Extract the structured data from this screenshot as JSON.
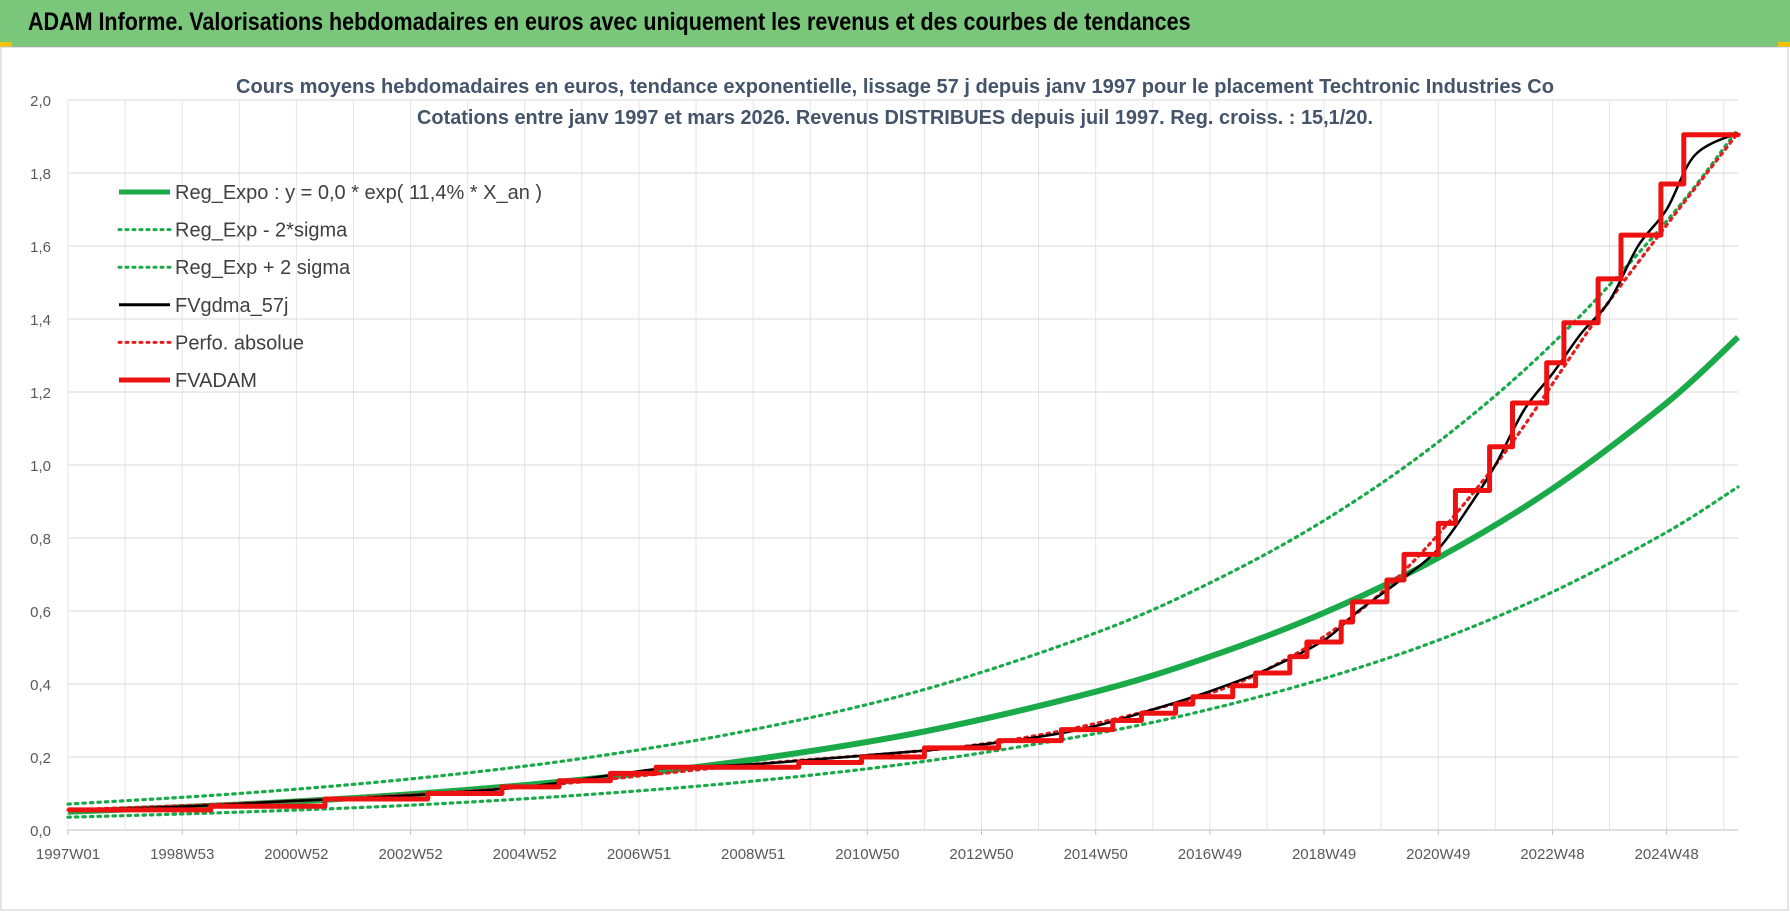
{
  "banner": {
    "title": "ADAM Informe. Valorisations hebdomadaires en euros avec uniquement les revenus et des courbes de tendances"
  },
  "chart_data": {
    "type": "line",
    "title": "Cours moyens hebdomadaires en euros, tendance exponentielle, lissage 57 j depuis janv 1997 pour le placement Techtronic Industries Co",
    "subtitle": "Cotations entre janv 1997 et mars 2026. Revenus DISTRIBUES depuis juil 1997. Reg. croiss. : 15,1/20.",
    "xlabel": "",
    "ylabel": "",
    "x_ticks": [
      "1997W01",
      "1998W53",
      "2000W52",
      "2002W52",
      "2004W52",
      "2006W51",
      "2008W51",
      "2010W50",
      "2012W50",
      "2014W50",
      "2016W49",
      "2018W49",
      "2020W49",
      "2022W48",
      "2024W48"
    ],
    "x_range": [
      "1997W01",
      "2026W13"
    ],
    "y_ticks": [
      "0,0",
      "0,2",
      "0,4",
      "0,6",
      "0,8",
      "1,0",
      "1,2",
      "1,4",
      "1,6",
      "1,8",
      "2,0"
    ],
    "ylim": [
      0,
      2.0
    ],
    "grid": true,
    "legend_position": "top-left",
    "series": [
      {
        "name": "Reg_Expo : y = 0,0 * exp( 11,4% *  X_an )",
        "color": "#1aaa4a",
        "style": "solid-thick",
        "points": [
          [
            1997.0,
            0.05
          ],
          [
            2000.0,
            0.07
          ],
          [
            2003.0,
            0.098
          ],
          [
            2006.0,
            0.138
          ],
          [
            2009.0,
            0.193
          ],
          [
            2012.0,
            0.27
          ],
          [
            2015.0,
            0.379
          ],
          [
            2017.0,
            0.475
          ],
          [
            2019.0,
            0.595
          ],
          [
            2021.0,
            0.746
          ],
          [
            2023.0,
            0.935
          ],
          [
            2025.0,
            1.17
          ],
          [
            2026.25,
            1.35
          ]
        ]
      },
      {
        "name": "Reg_Exp - 2*sigma",
        "color": "#1aaa4a",
        "style": "dotted",
        "points": [
          [
            1997.0,
            0.035
          ],
          [
            2000.0,
            0.049
          ],
          [
            2003.0,
            0.068
          ],
          [
            2006.0,
            0.096
          ],
          [
            2009.0,
            0.134
          ],
          [
            2012.0,
            0.188
          ],
          [
            2015.0,
            0.264
          ],
          [
            2017.0,
            0.331
          ],
          [
            2019.0,
            0.415
          ],
          [
            2021.0,
            0.52
          ],
          [
            2023.0,
            0.652
          ],
          [
            2025.0,
            0.816
          ],
          [
            2026.25,
            0.94
          ]
        ]
      },
      {
        "name": "Reg_Exp + 2 sigma",
        "color": "#1aaa4a",
        "style": "dotted",
        "points": [
          [
            1997.0,
            0.071
          ],
          [
            2000.0,
            0.1
          ],
          [
            2003.0,
            0.14
          ],
          [
            2006.0,
            0.196
          ],
          [
            2009.0,
            0.275
          ],
          [
            2012.0,
            0.385
          ],
          [
            2015.0,
            0.54
          ],
          [
            2017.0,
            0.677
          ],
          [
            2019.0,
            0.848
          ],
          [
            2021.0,
            1.063
          ],
          [
            2023.0,
            1.332
          ],
          [
            2025.0,
            1.668
          ],
          [
            2026.25,
            1.92
          ]
        ]
      },
      {
        "name": "FVgdma_57j",
        "color": "#000000",
        "style": "solid",
        "points": [
          [
            1997.0,
            0.055
          ],
          [
            1999.0,
            0.064
          ],
          [
            2001.0,
            0.08
          ],
          [
            2003.0,
            0.095
          ],
          [
            2005.0,
            0.118
          ],
          [
            2006.5,
            0.15
          ],
          [
            2007.5,
            0.17
          ],
          [
            2009.0,
            0.18
          ],
          [
            2011.0,
            0.205
          ],
          [
            2012.5,
            0.225
          ],
          [
            2014.0,
            0.255
          ],
          [
            2015.0,
            0.285
          ],
          [
            2016.0,
            0.33
          ],
          [
            2017.0,
            0.38
          ],
          [
            2018.0,
            0.44
          ],
          [
            2019.0,
            0.52
          ],
          [
            2019.6,
            0.6
          ],
          [
            2020.3,
            0.68
          ],
          [
            2021.0,
            0.77
          ],
          [
            2021.6,
            0.9
          ],
          [
            2022.0,
            1.0
          ],
          [
            2022.5,
            1.15
          ],
          [
            2023.0,
            1.25
          ],
          [
            2023.5,
            1.36
          ],
          [
            2024.0,
            1.45
          ],
          [
            2024.5,
            1.6
          ],
          [
            2025.0,
            1.7
          ],
          [
            2025.5,
            1.85
          ],
          [
            2026.25,
            1.91
          ]
        ]
      },
      {
        "name": "Perfo. absolue",
        "color": "#e02020",
        "style": "dotted",
        "points": [
          [
            1997.0,
            0.055
          ],
          [
            2001.0,
            0.08
          ],
          [
            2005.0,
            0.118
          ],
          [
            2009.0,
            0.18
          ],
          [
            2013.0,
            0.235
          ],
          [
            2016.0,
            0.33
          ],
          [
            2018.0,
            0.44
          ],
          [
            2020.0,
            0.65
          ],
          [
            2022.0,
            1.0
          ],
          [
            2024.0,
            1.45
          ],
          [
            2026.25,
            1.91
          ]
        ]
      },
      {
        "name": "FVADAM",
        "color": "#ee1111",
        "style": "step-thick",
        "points": [
          [
            1997.0,
            0.055
          ],
          [
            1999.5,
            0.065
          ],
          [
            2001.5,
            0.085
          ],
          [
            2003.3,
            0.1
          ],
          [
            2004.6,
            0.118
          ],
          [
            2005.6,
            0.135
          ],
          [
            2006.5,
            0.155
          ],
          [
            2007.3,
            0.172
          ],
          [
            2009.8,
            0.185
          ],
          [
            2010.9,
            0.2
          ],
          [
            2012.0,
            0.225
          ],
          [
            2013.3,
            0.245
          ],
          [
            2014.4,
            0.275
          ],
          [
            2015.3,
            0.3
          ],
          [
            2015.8,
            0.32
          ],
          [
            2016.4,
            0.345
          ],
          [
            2016.7,
            0.365
          ],
          [
            2017.4,
            0.395
          ],
          [
            2017.8,
            0.43
          ],
          [
            2018.4,
            0.475
          ],
          [
            2018.7,
            0.515
          ],
          [
            2019.3,
            0.57
          ],
          [
            2019.5,
            0.625
          ],
          [
            2020.1,
            0.685
          ],
          [
            2020.4,
            0.755
          ],
          [
            2021.0,
            0.84
          ],
          [
            2021.3,
            0.93
          ],
          [
            2021.9,
            1.05
          ],
          [
            2022.3,
            1.17
          ],
          [
            2022.9,
            1.28
          ],
          [
            2023.2,
            1.39
          ],
          [
            2023.8,
            1.51
          ],
          [
            2024.2,
            1.63
          ],
          [
            2024.9,
            1.77
          ],
          [
            2025.3,
            1.905
          ],
          [
            2026.25,
            1.91
          ]
        ]
      }
    ]
  }
}
